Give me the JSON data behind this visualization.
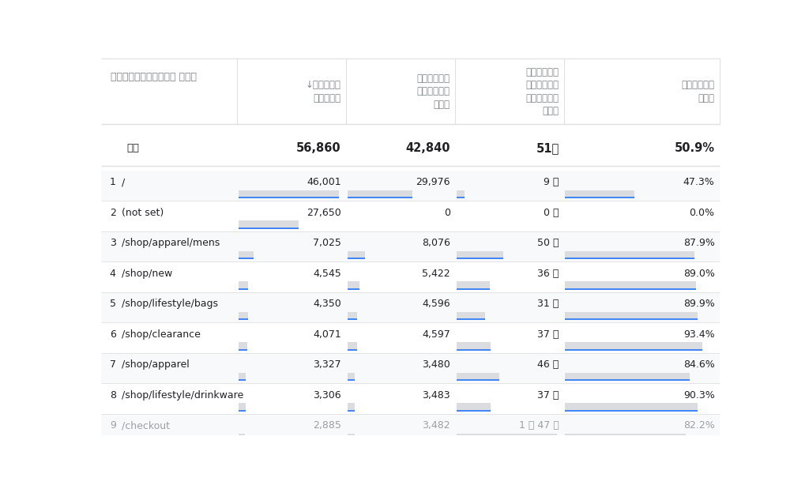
{
  "background_color": "#ffffff",
  "header_text_color": "#80868b",
  "body_text_color": "#202124",
  "light_text_color": "#9aa0a6",
  "blue_bar_color": "#4285f4",
  "gray_bar_color": "#dadce0",
  "row_alt_color": "#f8f9fa",
  "col_sep_color": "#e0e0e0",
  "header_labels": [
    "ページパスとスクリーン クラス",
    "↓アクティブ\nユーザー数",
    "エンゲージの\nあったセッシ\nョン数",
    "セッションあ\nたりの平均エ\nンゲージメン\nト時間",
    "エンゲージメ\nント率"
  ],
  "total_label": "合計",
  "total_values": [
    "56,860",
    "42,840",
    "51秒",
    "50.9%"
  ],
  "rows": [
    {
      "rank": "1",
      "page": "/",
      "users": 46001,
      "users_str": "46,001",
      "sessions": 29976,
      "sessions_str": "29,976",
      "time_sec": 9,
      "avg_time": "9 秒",
      "rate_pct": 47.3,
      "rate": "47.3%"
    },
    {
      "rank": "2",
      "page": "(not set)",
      "users": 27650,
      "users_str": "27,650",
      "sessions": 0,
      "sessions_str": "0",
      "time_sec": 0,
      "avg_time": "0 秒",
      "rate_pct": 0.0,
      "rate": "0.0%"
    },
    {
      "rank": "3",
      "page": "/shop/apparel/mens",
      "users": 7025,
      "users_str": "7,025",
      "sessions": 8076,
      "sessions_str": "8,076",
      "time_sec": 50,
      "avg_time": "50 秒",
      "rate_pct": 87.9,
      "rate": "87.9%"
    },
    {
      "rank": "4",
      "page": "/shop/new",
      "users": 4545,
      "users_str": "4,545",
      "sessions": 5422,
      "sessions_str": "5,422",
      "time_sec": 36,
      "avg_time": "36 秒",
      "rate_pct": 89.0,
      "rate": "89.0%"
    },
    {
      "rank": "5",
      "page": "/shop/lifestyle/bags",
      "users": 4350,
      "users_str": "4,350",
      "sessions": 4596,
      "sessions_str": "4,596",
      "time_sec": 31,
      "avg_time": "31 秒",
      "rate_pct": 89.9,
      "rate": "89.9%"
    },
    {
      "rank": "6",
      "page": "/shop/clearance",
      "users": 4071,
      "users_str": "4,071",
      "sessions": 4597,
      "sessions_str": "4,597",
      "time_sec": 37,
      "avg_time": "37 秒",
      "rate_pct": 93.4,
      "rate": "93.4%"
    },
    {
      "rank": "7",
      "page": "/shop/apparel",
      "users": 3327,
      "users_str": "3,327",
      "sessions": 3480,
      "sessions_str": "3,480",
      "time_sec": 46,
      "avg_time": "46 秒",
      "rate_pct": 84.6,
      "rate": "84.6%"
    },
    {
      "rank": "8",
      "page": "/shop/lifestyle/drinkware",
      "users": 3306,
      "users_str": "3,306",
      "sessions": 3483,
      "sessions_str": "3,483",
      "time_sec": 37,
      "avg_time": "37 秒",
      "rate_pct": 90.3,
      "rate": "90.3%"
    },
    {
      "rank": "9",
      "page": "/checkout",
      "users": 2885,
      "users_str": "2,885",
      "sessions": 3482,
      "sessions_str": "3,482",
      "time_sec": 107,
      "avg_time": "1 分 47 秒",
      "rate_pct": 82.2,
      "rate": "82.2%"
    }
  ],
  "max_users": 46001,
  "max_time_sec": 107
}
